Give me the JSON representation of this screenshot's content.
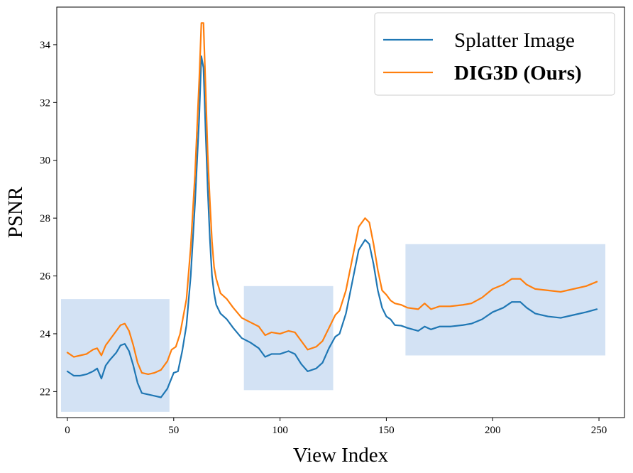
{
  "chart_data": {
    "type": "line",
    "title": "",
    "xlabel": "View Index",
    "ylabel": "PSNR",
    "xlim": [
      -5,
      262
    ],
    "ylim": [
      21.1,
      35.3
    ],
    "xticks": [
      0,
      50,
      100,
      150,
      200,
      250
    ],
    "yticks": [
      22,
      24,
      26,
      28,
      30,
      32,
      34
    ],
    "grid": false,
    "legend_position": "top-right",
    "highlight_regions": [
      {
        "x": [
          -3,
          48
        ],
        "y": [
          21.3,
          25.2
        ],
        "color": "#aecbeb"
      },
      {
        "x": [
          83,
          125
        ],
        "y": [
          22.05,
          25.65
        ],
        "color": "#aecbeb"
      },
      {
        "x": [
          159,
          253
        ],
        "y": [
          23.25,
          27.1
        ],
        "color": "#aecbeb"
      }
    ],
    "series": [
      {
        "name": "Splatter Image",
        "color": "#1f77b4",
        "points": [
          [
            0,
            22.7
          ],
          [
            3,
            22.55
          ],
          [
            6,
            22.55
          ],
          [
            9,
            22.6
          ],
          [
            12,
            22.7
          ],
          [
            14,
            22.8
          ],
          [
            16,
            22.45
          ],
          [
            18,
            22.9
          ],
          [
            20,
            23.1
          ],
          [
            23,
            23.35
          ],
          [
            25,
            23.6
          ],
          [
            27,
            23.65
          ],
          [
            29,
            23.4
          ],
          [
            31,
            22.9
          ],
          [
            33,
            22.3
          ],
          [
            35,
            21.95
          ],
          [
            38,
            21.9
          ],
          [
            41,
            21.85
          ],
          [
            44,
            21.8
          ],
          [
            47,
            22.1
          ],
          [
            50,
            22.65
          ],
          [
            52,
            22.7
          ],
          [
            54,
            23.4
          ],
          [
            56,
            24.3
          ],
          [
            58,
            26.0
          ],
          [
            60,
            28.5
          ],
          [
            62,
            31.5
          ],
          [
            63,
            33.6
          ],
          [
            64,
            33.2
          ],
          [
            65,
            31.0
          ],
          [
            66,
            29.0
          ],
          [
            67,
            27.3
          ],
          [
            68,
            26.0
          ],
          [
            69,
            25.4
          ],
          [
            70,
            25.0
          ],
          [
            72,
            24.7
          ],
          [
            75,
            24.5
          ],
          [
            78,
            24.2
          ],
          [
            82,
            23.85
          ],
          [
            86,
            23.7
          ],
          [
            90,
            23.5
          ],
          [
            93,
            23.2
          ],
          [
            96,
            23.3
          ],
          [
            100,
            23.3
          ],
          [
            104,
            23.4
          ],
          [
            107,
            23.3
          ],
          [
            110,
            22.95
          ],
          [
            113,
            22.7
          ],
          [
            117,
            22.8
          ],
          [
            120,
            23.0
          ],
          [
            123,
            23.5
          ],
          [
            126,
            23.9
          ],
          [
            128,
            24.0
          ],
          [
            131,
            24.7
          ],
          [
            134,
            25.8
          ],
          [
            137,
            26.9
          ],
          [
            140,
            27.25
          ],
          [
            142,
            27.1
          ],
          [
            144,
            26.4
          ],
          [
            146,
            25.5
          ],
          [
            148,
            24.9
          ],
          [
            150,
            24.6
          ],
          [
            152,
            24.5
          ],
          [
            154,
            24.3
          ],
          [
            157,
            24.28
          ],
          [
            160,
            24.2
          ],
          [
            165,
            24.1
          ],
          [
            168,
            24.25
          ],
          [
            171,
            24.15
          ],
          [
            175,
            24.25
          ],
          [
            180,
            24.25
          ],
          [
            186,
            24.3
          ],
          [
            190,
            24.35
          ],
          [
            195,
            24.5
          ],
          [
            200,
            24.75
          ],
          [
            205,
            24.9
          ],
          [
            209,
            25.1
          ],
          [
            213,
            25.1
          ],
          [
            216,
            24.9
          ],
          [
            220,
            24.7
          ],
          [
            226,
            24.6
          ],
          [
            232,
            24.55
          ],
          [
            238,
            24.65
          ],
          [
            244,
            24.75
          ],
          [
            249,
            24.85
          ]
        ]
      },
      {
        "name": "DIG3D (Ours)",
        "color": "#ff7f0e",
        "points": [
          [
            0,
            23.35
          ],
          [
            3,
            23.2
          ],
          [
            6,
            23.25
          ],
          [
            9,
            23.3
          ],
          [
            12,
            23.45
          ],
          [
            14,
            23.5
          ],
          [
            16,
            23.25
          ],
          [
            18,
            23.6
          ],
          [
            20,
            23.8
          ],
          [
            23,
            24.1
          ],
          [
            25,
            24.3
          ],
          [
            27,
            24.35
          ],
          [
            29,
            24.1
          ],
          [
            31,
            23.6
          ],
          [
            33,
            23.0
          ],
          [
            35,
            22.65
          ],
          [
            38,
            22.6
          ],
          [
            41,
            22.65
          ],
          [
            44,
            22.75
          ],
          [
            47,
            23.05
          ],
          [
            49,
            23.45
          ],
          [
            51,
            23.55
          ],
          [
            53,
            24.0
          ],
          [
            56,
            25.2
          ],
          [
            58,
            27.0
          ],
          [
            60,
            29.5
          ],
          [
            62,
            32.8
          ],
          [
            63,
            34.75
          ],
          [
            64,
            34.75
          ],
          [
            65,
            32.5
          ],
          [
            66,
            30.2
          ],
          [
            67,
            28.6
          ],
          [
            68,
            27.2
          ],
          [
            69,
            26.3
          ],
          [
            70,
            25.9
          ],
          [
            72,
            25.4
          ],
          [
            75,
            25.2
          ],
          [
            78,
            24.9
          ],
          [
            82,
            24.55
          ],
          [
            86,
            24.4
          ],
          [
            90,
            24.25
          ],
          [
            93,
            23.95
          ],
          [
            96,
            24.05
          ],
          [
            100,
            24.0
          ],
          [
            104,
            24.1
          ],
          [
            107,
            24.05
          ],
          [
            110,
            23.75
          ],
          [
            113,
            23.45
          ],
          [
            117,
            23.55
          ],
          [
            120,
            23.75
          ],
          [
            123,
            24.2
          ],
          [
            126,
            24.65
          ],
          [
            128,
            24.8
          ],
          [
            131,
            25.5
          ],
          [
            134,
            26.6
          ],
          [
            137,
            27.7
          ],
          [
            140,
            28.0
          ],
          [
            142,
            27.85
          ],
          [
            144,
            27.1
          ],
          [
            146,
            26.2
          ],
          [
            148,
            25.5
          ],
          [
            150,
            25.35
          ],
          [
            152,
            25.15
          ],
          [
            154,
            25.05
          ],
          [
            157,
            25.0
          ],
          [
            160,
            24.9
          ],
          [
            165,
            24.85
          ],
          [
            168,
            25.05
          ],
          [
            171,
            24.85
          ],
          [
            175,
            24.95
          ],
          [
            180,
            24.95
          ],
          [
            186,
            25.0
          ],
          [
            190,
            25.05
          ],
          [
            195,
            25.25
          ],
          [
            200,
            25.55
          ],
          [
            205,
            25.7
          ],
          [
            209,
            25.9
          ],
          [
            213,
            25.9
          ],
          [
            216,
            25.7
          ],
          [
            220,
            25.55
          ],
          [
            226,
            25.5
          ],
          [
            232,
            25.45
          ],
          [
            238,
            25.55
          ],
          [
            244,
            25.65
          ],
          [
            249,
            25.8
          ]
        ]
      }
    ]
  },
  "legend": {
    "items": [
      {
        "label": "Splatter Image",
        "bold": false
      },
      {
        "label": "DIG3D (Ours)",
        "bold": true
      }
    ]
  }
}
